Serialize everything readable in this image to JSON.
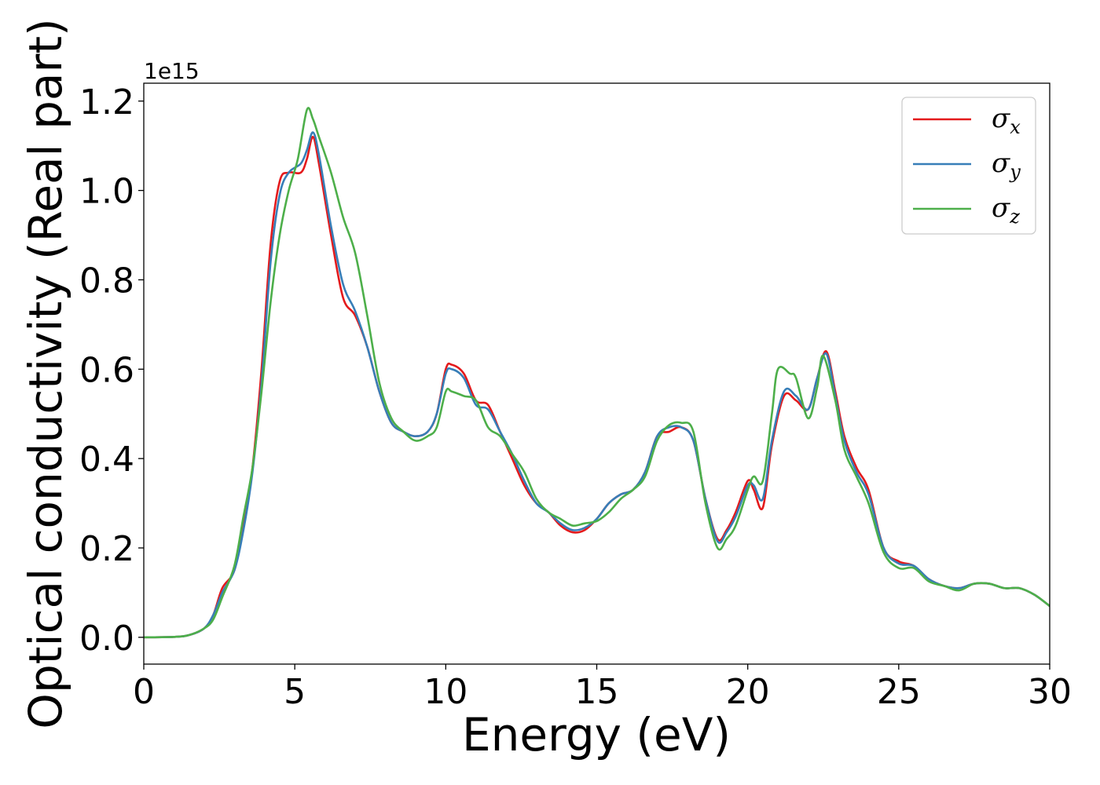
{
  "chart_data": {
    "type": "line",
    "xlabel": "Energy (eV)",
    "ylabel": "Optical conductivity (Real part)",
    "y_offset_label": "1e15",
    "xlim": [
      0,
      30
    ],
    "ylim": [
      -0.06,
      1.24
    ],
    "x_ticks": [
      0,
      5,
      10,
      15,
      20,
      25,
      30
    ],
    "x_tick_labels": [
      "0",
      "5",
      "10",
      "15",
      "20",
      "25",
      "30"
    ],
    "y_ticks": [
      0.0,
      0.2,
      0.4,
      0.6,
      0.8,
      1.0,
      1.2
    ],
    "y_tick_labels": [
      "0.0",
      "0.2",
      "0.4",
      "0.6",
      "0.8",
      "1.0",
      "1.2"
    ],
    "grid": false,
    "legend_position": "top-right",
    "series": [
      {
        "name": "σ_x",
        "legend_base": "σ",
        "legend_sub": "x",
        "color": "#e41a1c",
        "points": [
          [
            0,
            0
          ],
          [
            1,
            0.001
          ],
          [
            1.5,
            0.005
          ],
          [
            2,
            0.02
          ],
          [
            2.3,
            0.05
          ],
          [
            2.6,
            0.11
          ],
          [
            3,
            0.15
          ],
          [
            3.3,
            0.25
          ],
          [
            3.6,
            0.38
          ],
          [
            3.9,
            0.6
          ],
          [
            4.2,
            0.88
          ],
          [
            4.5,
            1.02
          ],
          [
            4.8,
            1.04
          ],
          [
            5.2,
            1.04
          ],
          [
            5.4,
            1.07
          ],
          [
            5.6,
            1.12
          ],
          [
            5.8,
            1.06
          ],
          [
            6.2,
            0.9
          ],
          [
            6.6,
            0.76
          ],
          [
            7,
            0.72
          ],
          [
            7.4,
            0.65
          ],
          [
            7.8,
            0.55
          ],
          [
            8.2,
            0.48
          ],
          [
            8.6,
            0.46
          ],
          [
            9,
            0.45
          ],
          [
            9.4,
            0.46
          ],
          [
            9.7,
            0.5
          ],
          [
            10,
            0.6
          ],
          [
            10.2,
            0.61
          ],
          [
            10.6,
            0.59
          ],
          [
            11,
            0.53
          ],
          [
            11.4,
            0.52
          ],
          [
            11.8,
            0.46
          ],
          [
            12.2,
            0.4
          ],
          [
            12.6,
            0.34
          ],
          [
            13,
            0.3
          ],
          [
            13.4,
            0.28
          ],
          [
            13.8,
            0.25
          ],
          [
            14.2,
            0.235
          ],
          [
            14.6,
            0.24
          ],
          [
            15,
            0.265
          ],
          [
            15.4,
            0.3
          ],
          [
            15.8,
            0.32
          ],
          [
            16.2,
            0.33
          ],
          [
            16.6,
            0.37
          ],
          [
            17,
            0.45
          ],
          [
            17.4,
            0.46
          ],
          [
            17.8,
            0.47
          ],
          [
            18.2,
            0.44
          ],
          [
            18.6,
            0.31
          ],
          [
            19,
            0.22
          ],
          [
            19.3,
            0.24
          ],
          [
            19.6,
            0.28
          ],
          [
            20,
            0.35
          ],
          [
            20.2,
            0.33
          ],
          [
            20.5,
            0.29
          ],
          [
            20.8,
            0.43
          ],
          [
            21.2,
            0.54
          ],
          [
            21.6,
            0.53
          ],
          [
            22,
            0.51
          ],
          [
            22.3,
            0.58
          ],
          [
            22.6,
            0.64
          ],
          [
            22.9,
            0.55
          ],
          [
            23.2,
            0.45
          ],
          [
            23.6,
            0.38
          ],
          [
            24,
            0.33
          ],
          [
            24.5,
            0.2
          ],
          [
            25,
            0.17
          ],
          [
            25.5,
            0.16
          ],
          [
            26,
            0.13
          ],
          [
            26.5,
            0.115
          ],
          [
            27,
            0.11
          ],
          [
            27.5,
            0.12
          ],
          [
            28,
            0.12
          ],
          [
            28.5,
            0.11
          ],
          [
            29,
            0.11
          ],
          [
            29.5,
            0.095
          ],
          [
            30,
            0.07
          ]
        ]
      },
      {
        "name": "σ_y",
        "legend_base": "σ",
        "legend_sub": "y",
        "color": "#377eb8",
        "points": [
          [
            0,
            0
          ],
          [
            1,
            0.001
          ],
          [
            1.5,
            0.005
          ],
          [
            2,
            0.02
          ],
          [
            2.3,
            0.05
          ],
          [
            2.6,
            0.1
          ],
          [
            3,
            0.15
          ],
          [
            3.3,
            0.24
          ],
          [
            3.6,
            0.37
          ],
          [
            3.9,
            0.57
          ],
          [
            4.2,
            0.84
          ],
          [
            4.5,
            0.99
          ],
          [
            4.8,
            1.04
          ],
          [
            5.2,
            1.06
          ],
          [
            5.4,
            1.09
          ],
          [
            5.6,
            1.13
          ],
          [
            5.8,
            1.08
          ],
          [
            6.2,
            0.92
          ],
          [
            6.6,
            0.79
          ],
          [
            7,
            0.73
          ],
          [
            7.4,
            0.65
          ],
          [
            7.8,
            0.55
          ],
          [
            8.2,
            0.48
          ],
          [
            8.6,
            0.46
          ],
          [
            9,
            0.45
          ],
          [
            9.4,
            0.46
          ],
          [
            9.7,
            0.5
          ],
          [
            10,
            0.59
          ],
          [
            10.2,
            0.6
          ],
          [
            10.6,
            0.58
          ],
          [
            11,
            0.52
          ],
          [
            11.4,
            0.51
          ],
          [
            11.8,
            0.46
          ],
          [
            12.2,
            0.41
          ],
          [
            12.6,
            0.35
          ],
          [
            13,
            0.3
          ],
          [
            13.4,
            0.28
          ],
          [
            13.8,
            0.255
          ],
          [
            14.2,
            0.24
          ],
          [
            14.6,
            0.245
          ],
          [
            15,
            0.265
          ],
          [
            15.4,
            0.3
          ],
          [
            15.8,
            0.32
          ],
          [
            16.2,
            0.33
          ],
          [
            16.6,
            0.37
          ],
          [
            17,
            0.45
          ],
          [
            17.4,
            0.47
          ],
          [
            17.8,
            0.47
          ],
          [
            18.2,
            0.44
          ],
          [
            18.6,
            0.31
          ],
          [
            19,
            0.215
          ],
          [
            19.3,
            0.235
          ],
          [
            19.6,
            0.27
          ],
          [
            20,
            0.34
          ],
          [
            20.2,
            0.34
          ],
          [
            20.5,
            0.31
          ],
          [
            20.8,
            0.44
          ],
          [
            21.2,
            0.55
          ],
          [
            21.6,
            0.54
          ],
          [
            22,
            0.51
          ],
          [
            22.3,
            0.58
          ],
          [
            22.6,
            0.635
          ],
          [
            22.9,
            0.54
          ],
          [
            23.2,
            0.44
          ],
          [
            23.6,
            0.37
          ],
          [
            24,
            0.32
          ],
          [
            24.5,
            0.2
          ],
          [
            25,
            0.165
          ],
          [
            25.5,
            0.16
          ],
          [
            26,
            0.13
          ],
          [
            26.5,
            0.115
          ],
          [
            27,
            0.11
          ],
          [
            27.5,
            0.12
          ],
          [
            28,
            0.12
          ],
          [
            28.5,
            0.11
          ],
          [
            29,
            0.11
          ],
          [
            29.5,
            0.095
          ],
          [
            30,
            0.07
          ]
        ]
      },
      {
        "name": "σ_z",
        "legend_base": "σ",
        "legend_sub": "z",
        "color": "#4daf4a",
        "points": [
          [
            0,
            0
          ],
          [
            1,
            0.001
          ],
          [
            1.5,
            0.005
          ],
          [
            2,
            0.02
          ],
          [
            2.3,
            0.04
          ],
          [
            2.6,
            0.09
          ],
          [
            3,
            0.16
          ],
          [
            3.3,
            0.27
          ],
          [
            3.6,
            0.38
          ],
          [
            3.9,
            0.55
          ],
          [
            4.2,
            0.75
          ],
          [
            4.5,
            0.9
          ],
          [
            4.8,
            1.0
          ],
          [
            5.1,
            1.07
          ],
          [
            5.4,
            1.18
          ],
          [
            5.6,
            1.16
          ],
          [
            5.8,
            1.12
          ],
          [
            6.2,
            1.04
          ],
          [
            6.6,
            0.94
          ],
          [
            7,
            0.86
          ],
          [
            7.4,
            0.72
          ],
          [
            7.8,
            0.57
          ],
          [
            8.2,
            0.49
          ],
          [
            8.6,
            0.46
          ],
          [
            9,
            0.44
          ],
          [
            9.4,
            0.45
          ],
          [
            9.7,
            0.47
          ],
          [
            10,
            0.55
          ],
          [
            10.2,
            0.55
          ],
          [
            10.6,
            0.54
          ],
          [
            11,
            0.53
          ],
          [
            11.4,
            0.47
          ],
          [
            11.8,
            0.45
          ],
          [
            12.2,
            0.41
          ],
          [
            12.6,
            0.37
          ],
          [
            13,
            0.31
          ],
          [
            13.4,
            0.28
          ],
          [
            13.8,
            0.265
          ],
          [
            14.2,
            0.25
          ],
          [
            14.6,
            0.255
          ],
          [
            15,
            0.26
          ],
          [
            15.4,
            0.28
          ],
          [
            15.8,
            0.31
          ],
          [
            16.2,
            0.33
          ],
          [
            16.6,
            0.36
          ],
          [
            17,
            0.44
          ],
          [
            17.4,
            0.475
          ],
          [
            17.8,
            0.48
          ],
          [
            18.2,
            0.46
          ],
          [
            18.6,
            0.3
          ],
          [
            19,
            0.2
          ],
          [
            19.3,
            0.22
          ],
          [
            19.6,
            0.25
          ],
          [
            20,
            0.33
          ],
          [
            20.2,
            0.36
          ],
          [
            20.5,
            0.35
          ],
          [
            20.8,
            0.5
          ],
          [
            21,
            0.6
          ],
          [
            21.4,
            0.59
          ],
          [
            21.6,
            0.58
          ],
          [
            22,
            0.49
          ],
          [
            22.3,
            0.56
          ],
          [
            22.5,
            0.63
          ],
          [
            22.9,
            0.53
          ],
          [
            23.2,
            0.42
          ],
          [
            23.6,
            0.36
          ],
          [
            24,
            0.3
          ],
          [
            24.5,
            0.19
          ],
          [
            25,
            0.155
          ],
          [
            25.5,
            0.155
          ],
          [
            26,
            0.125
          ],
          [
            26.5,
            0.115
          ],
          [
            27,
            0.105
          ],
          [
            27.5,
            0.12
          ],
          [
            28,
            0.12
          ],
          [
            28.5,
            0.11
          ],
          [
            29,
            0.11
          ],
          [
            29.5,
            0.095
          ],
          [
            30,
            0.07
          ]
        ]
      }
    ]
  }
}
